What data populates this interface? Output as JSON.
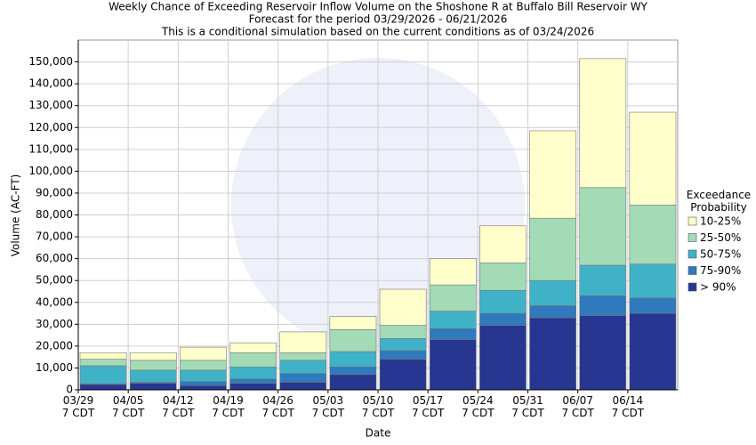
{
  "chart_data": {
    "type": "stacked_bar",
    "title": "Weekly Chance of Exceeding Reservoir Inflow Volume on the Shoshone R at Buffalo Bill Reservoir WY",
    "subtitle": "Forecast for the period 03/29/2026 - 06/21/2026",
    "note": "This is a conditional simulation based on the current conditions as of 03/24/2026",
    "x_label": "Date",
    "y_label": "Volume (AC-FT)",
    "legend_title": "Exceedance Probability",
    "categories": [
      "03/29 7 CDT",
      "04/05 7 CDT",
      "04/12 7 CDT",
      "04/19 7 CDT",
      "04/26 7 CDT",
      "05/03 7 CDT",
      "05/10 7 CDT",
      "05/17 7 CDT",
      "05/24 7 CDT",
      "05/31 7 CDT",
      "06/07 7 CDT",
      "06/14 7 CDT"
    ],
    "series": [
      {
        "name": "> 90%",
        "color": "#263691",
        "values": [
          2500,
          3000,
          2000,
          3000,
          3500,
          7000,
          14000,
          23000,
          29500,
          33000,
          34000,
          35000
        ]
      },
      {
        "name": "75-90%",
        "color": "#2f79bd",
        "values": [
          200,
          500,
          1800,
          2000,
          4000,
          3500,
          4000,
          5000,
          5500,
          5500,
          9000,
          7000
        ]
      },
      {
        "name": "50-75%",
        "color": "#40b2c8",
        "values": [
          8300,
          5500,
          5200,
          5500,
          6000,
          7000,
          5500,
          8000,
          10500,
          11500,
          14000,
          15500
        ]
      },
      {
        "name": "25-50%",
        "color": "#a2dbb5",
        "values": [
          3000,
          4500,
          4500,
          6500,
          3500,
          10000,
          6000,
          12000,
          12500,
          28500,
          35500,
          27000
        ]
      },
      {
        "name": "10-25%",
        "color": "#ffffcc",
        "values": [
          3000,
          3500,
          6000,
          4500,
          9500,
          6000,
          16500,
          12000,
          17000,
          40000,
          59000,
          42500
        ]
      }
    ],
    "ylim": [
      0,
      160000
    ],
    "yticks": [
      0,
      {
        "value": 10000,
        "label": "10,000"
      },
      {
        "value": 20000,
        "label": "20,000"
      },
      {
        "value": 30000,
        "label": "30,000"
      },
      {
        "value": 40000,
        "label": "40,000"
      },
      {
        "value": 50000,
        "label": "50,000"
      },
      {
        "value": 60000,
        "label": "60,000"
      },
      {
        "value": 70000,
        "label": "70,000"
      },
      {
        "value": 80000,
        "label": "80,000"
      },
      {
        "value": 90000,
        "label": "90,000"
      },
      {
        "value": 100000,
        "label": "100,000"
      },
      {
        "value": 110000,
        "label": "110,000"
      },
      {
        "value": 120000,
        "label": "120,000"
      },
      {
        "value": 130000,
        "label": "130,000"
      },
      {
        "value": 140000,
        "label": "140,000"
      },
      {
        "value": 150000,
        "label": "150,000"
      }
    ],
    "grid": true
  }
}
